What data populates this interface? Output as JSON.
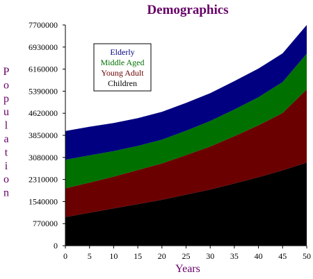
{
  "chart_data": {
    "type": "area",
    "stacked": true,
    "title": "Demographics",
    "xlabel": "Years",
    "ylabel": "Population",
    "x": [
      0,
      5,
      10,
      15,
      20,
      25,
      30,
      35,
      40,
      45,
      50
    ],
    "x_ticks": [
      "0",
      "5",
      "10",
      "15",
      "20",
      "25",
      "30",
      "35",
      "40",
      "45",
      "50"
    ],
    "xlim": [
      0,
      50
    ],
    "ylim": [
      0,
      7700000
    ],
    "y_ticks": [
      "0",
      "770000",
      "1540000",
      "2310000",
      "3080000",
      "3850000",
      "4620000",
      "5390000",
      "6160000",
      "6930000",
      "7700000"
    ],
    "grid": false,
    "legend_position": "top-left",
    "series": [
      {
        "name": "Children",
        "color": "#000000",
        "values": [
          1000000,
          1150000,
          1300000,
          1450000,
          1600000,
          1780000,
          1960000,
          2170000,
          2390000,
          2630000,
          2900000
        ]
      },
      {
        "name": "Young Adult",
        "color": "#6b0000",
        "values": [
          1000000,
          1050000,
          1110000,
          1190000,
          1270000,
          1380000,
          1500000,
          1650000,
          1810000,
          2000000,
          2550000
        ]
      },
      {
        "name": "Middle Aged",
        "color": "#007000",
        "values": [
          1000000,
          950000,
          890000,
          840000,
          830000,
          850000,
          890000,
          930000,
          980000,
          1080000,
          1250000
        ]
      },
      {
        "name": "Elderly",
        "color": "#000080",
        "values": [
          1000000,
          1000000,
          980000,
          970000,
          970000,
          970000,
          970000,
          990000,
          1000000,
          1000000,
          1000000
        ]
      }
    ],
    "legend_order": [
      "Elderly",
      "Middle Aged",
      "Young Adult",
      "Children"
    ],
    "title_color": "#660066",
    "label_color": "#660066"
  }
}
